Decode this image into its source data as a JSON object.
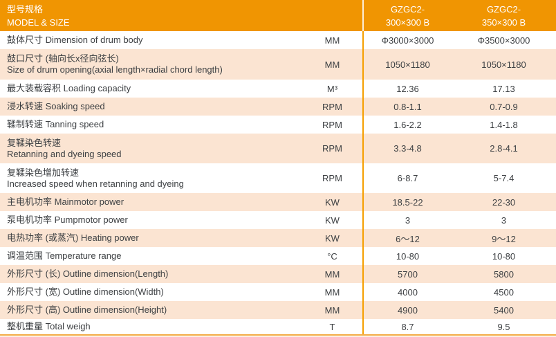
{
  "header": {
    "title_zh": "型号规格",
    "title_en": "MODEL & SIZE",
    "models": [
      {
        "line1": "GZGC2-",
        "line2": "300×300 B"
      },
      {
        "line1": "GZGC2-",
        "line2": "350×300 B"
      }
    ]
  },
  "rows": [
    {
      "label": "鼓体尺寸 Dimension of drum body",
      "unit": "MM",
      "values": [
        "Φ3000×3000",
        "Φ3500×3000"
      ]
    },
    {
      "label": "鼓口尺寸 (轴向长x径向弦长)\nSize of drum opening(axial length×radial chord length)",
      "unit": "MM",
      "values": [
        "1050×1180",
        "1050×1180"
      ]
    },
    {
      "label": "最大装载容积 Loading capacity",
      "unit": "M³",
      "values": [
        "12.36",
        "17.13"
      ]
    },
    {
      "label": "浸水转速 Soaking speed",
      "unit": "RPM",
      "values": [
        "0.8-1.1",
        "0.7-0.9"
      ]
    },
    {
      "label": "鞣制转速 Tanning speed",
      "unit": "RPM",
      "values": [
        "1.6-2.2",
        "1.4-1.8"
      ]
    },
    {
      "label": "复鞣染色转速\nRetanning and dyeing speed",
      "unit": "RPM",
      "values": [
        "3.3-4.8",
        "2.8-4.1"
      ]
    },
    {
      "label": "复鞣染色增加转速\nIncreased speed when retanning and dyeing",
      "unit": "RPM",
      "values": [
        "6-8.7",
        "5-7.4"
      ]
    },
    {
      "label": "主电机功率 Mainmotor power",
      "unit": "KW",
      "values": [
        "18.5-22",
        "22-30"
      ]
    },
    {
      "label": "泵电机功率 Pumpmotor power",
      "unit": "KW",
      "values": [
        "3",
        "3"
      ]
    },
    {
      "label": "电热功率 (或蒸汽) Heating power",
      "unit": "KW",
      "values": [
        "6～12",
        "9～12"
      ]
    },
    {
      "label": "调温范围 Temperature range",
      "unit": "°C",
      "values": [
        "10-80",
        "10-80"
      ]
    },
    {
      "label": "外形尺寸 (长) Outline dimension(Length)",
      "unit": "MM",
      "values": [
        "5700",
        "5800"
      ]
    },
    {
      "label": "外形尺寸 (宽) Outline dimension(Width)",
      "unit": "MM",
      "values": [
        "4000",
        "4500"
      ]
    },
    {
      "label": "外形尺寸 (高) Outline dimension(Height)",
      "unit": "MM",
      "values": [
        "4900",
        "5400"
      ]
    },
    {
      "label": "整机重量 Total weigh",
      "unit": "T",
      "values": [
        "8.7",
        "9.5"
      ]
    }
  ],
  "colors": {
    "header_bg": "#f09502",
    "row_alt_bg": "#fbe4d2",
    "divider_body": "#f59f00",
    "divider_header": "#ffffff",
    "bottom_line": "#f3ad49",
    "text": "#3d4043",
    "header_text": "#ffffff"
  }
}
